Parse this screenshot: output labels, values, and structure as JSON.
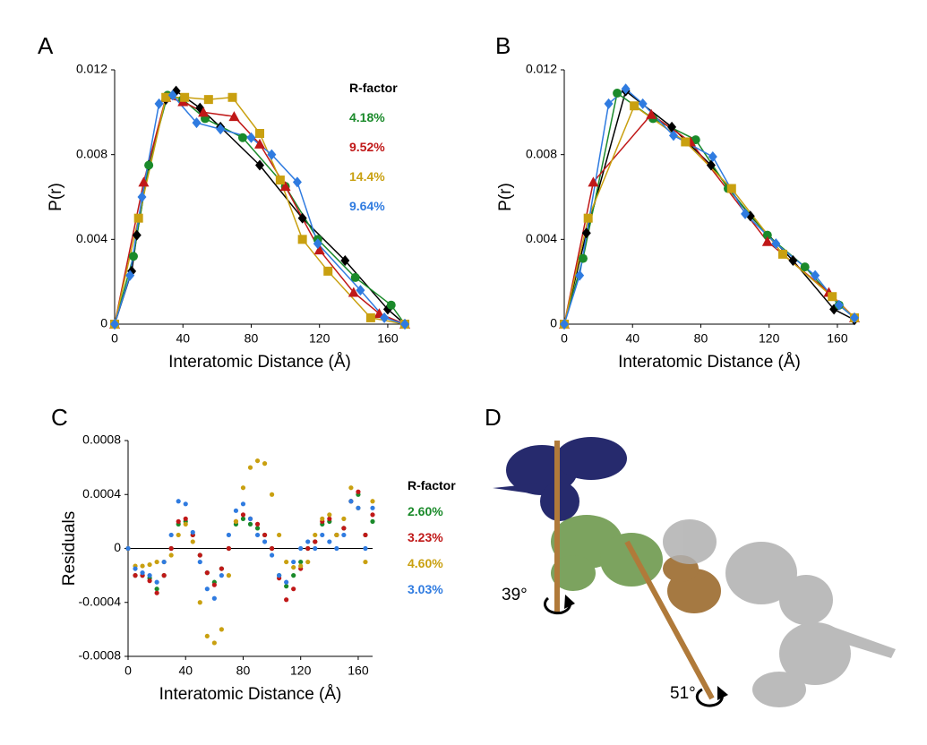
{
  "chart_data": [
    {
      "type": "line",
      "panel": "A",
      "xlabel": "Interatomic Distance (Å)",
      "ylabel": "P(r)",
      "xlim": [
        0,
        170
      ],
      "xticks": [
        0,
        40,
        80,
        120,
        160
      ],
      "ylim": [
        0,
        0.012
      ],
      "yticks": [
        0,
        0.004,
        0.008,
        0.012
      ],
      "legend_title": "R-factor",
      "series": [
        {
          "color": "#000000",
          "marker": "diamond",
          "x": [
            0,
            10,
            13,
            20,
            30,
            36,
            50,
            62,
            85,
            110,
            135,
            160,
            170
          ],
          "values": [
            0,
            0.0025,
            0.0042,
            0.0075,
            0.0106,
            0.011,
            0.0102,
            0.0093,
            0.0075,
            0.005,
            0.003,
            0.0007,
            0
          ]
        },
        {
          "name": "4.18%",
          "color": "#1a8a2a",
          "marker": "circle",
          "x": [
            0,
            11,
            20,
            31,
            40,
            53,
            75,
            100,
            119,
            141,
            162,
            170
          ],
          "values": [
            0,
            0.0032,
            0.0075,
            0.0108,
            0.0106,
            0.0097,
            0.0088,
            0.0065,
            0.004,
            0.0022,
            0.0009,
            0
          ]
        },
        {
          "name": "9.52%",
          "color": "#c01818",
          "marker": "triangle",
          "x": [
            0,
            17,
            30,
            40,
            52,
            70,
            85,
            100,
            120,
            140,
            155,
            170
          ],
          "values": [
            0,
            0.0067,
            0.0107,
            0.0105,
            0.01,
            0.0098,
            0.0085,
            0.0065,
            0.0035,
            0.0015,
            0.0005,
            0
          ]
        },
        {
          "name": "14.4%",
          "color": "#c9a010",
          "marker": "square",
          "x": [
            0,
            14,
            30,
            41,
            55,
            69,
            85,
            97,
            110,
            125,
            150,
            170
          ],
          "values": [
            0,
            0.005,
            0.0107,
            0.0107,
            0.0106,
            0.0107,
            0.009,
            0.0068,
            0.004,
            0.0025,
            0.0003,
            0
          ]
        },
        {
          "name": "9.64%",
          "color": "#2f7be0",
          "marker": "diamond",
          "x": [
            0,
            9,
            16,
            26,
            34,
            48,
            62,
            80,
            92,
            107,
            119,
            144,
            158,
            170
          ],
          "values": [
            0,
            0.0023,
            0.006,
            0.0104,
            0.0108,
            0.0095,
            0.0092,
            0.0088,
            0.008,
            0.0067,
            0.0038,
            0.0016,
            0.0003,
            0
          ]
        }
      ]
    },
    {
      "type": "line",
      "panel": "B",
      "xlabel": "Interatomic Distance (Å)",
      "ylabel": "P(r)",
      "xlim": [
        0,
        170
      ],
      "xticks": [
        0,
        40,
        80,
        120,
        160
      ],
      "ylim": [
        0,
        0.012
      ],
      "yticks": [
        0,
        0.004,
        0.008,
        0.012
      ],
      "series": [
        {
          "color": "#000000",
          "marker": "diamond",
          "x": [
            0,
            13,
            36,
            63,
            86,
            109,
            134,
            158,
            170
          ],
          "values": [
            0,
            0.0043,
            0.011,
            0.0093,
            0.0075,
            0.0051,
            0.003,
            0.0007,
            0.0002
          ]
        },
        {
          "color": "#1a8a2a",
          "marker": "circle",
          "x": [
            0,
            11,
            31,
            52,
            77,
            96,
            119,
            141,
            161,
            170
          ],
          "values": [
            0,
            0.0031,
            0.0109,
            0.0097,
            0.0087,
            0.0064,
            0.0042,
            0.0027,
            0.0009,
            0.0003
          ]
        },
        {
          "color": "#c01818",
          "marker": "triangle",
          "x": [
            0,
            17,
            51,
            74,
            119,
            155,
            170
          ],
          "values": [
            0,
            0.0067,
            0.0099,
            0.0086,
            0.0039,
            0.0015,
            0.0003
          ]
        },
        {
          "color": "#c9a010",
          "marker": "square",
          "x": [
            0,
            14,
            41,
            71,
            98,
            128,
            157,
            170
          ],
          "values": [
            0,
            0.005,
            0.0103,
            0.0086,
            0.0064,
            0.0033,
            0.0013,
            0.0003
          ]
        },
        {
          "color": "#2f7be0",
          "marker": "diamond",
          "x": [
            0,
            9,
            26,
            36,
            46,
            64,
            87,
            106,
            124,
            147,
            161,
            170
          ],
          "values": [
            0,
            0.0023,
            0.0104,
            0.0111,
            0.0104,
            0.0089,
            0.0079,
            0.0052,
            0.0038,
            0.0023,
            0.0009,
            0.0003
          ]
        }
      ]
    },
    {
      "type": "scatter",
      "panel": "C",
      "xlabel": "Interatomic Distance (Å)",
      "ylabel": "Residuals",
      "xlim": [
        0,
        170
      ],
      "xticks": [
        0,
        40,
        80,
        120,
        160
      ],
      "ylim": [
        -0.0008,
        0.0008
      ],
      "yticks": [
        -0.0008,
        -0.0004,
        0,
        0.0004,
        0.0008
      ],
      "zero_line": true,
      "legend_title": "R-factor",
      "x": [
        0,
        5,
        10,
        15,
        20,
        25,
        30,
        35,
        40,
        45,
        50,
        55,
        60,
        65,
        70,
        75,
        80,
        85,
        90,
        95,
        100,
        105,
        110,
        115,
        120,
        125,
        130,
        135,
        140,
        145,
        150,
        155,
        160,
        165,
        170
      ],
      "series": [
        {
          "name": "2.60%",
          "color": "#1a8a2a",
          "values": [
            0,
            -0.0002,
            -0.0002,
            -0.00022,
            -0.0003,
            -0.0002,
            0,
            0.00018,
            0.0002,
            0.0001,
            -5e-05,
            -0.00018,
            -0.00025,
            -0.00015,
            0,
            0.00018,
            0.00022,
            0.00018,
            0.00015,
            0.0001,
            0,
            -0.0002,
            -0.00028,
            -0.0002,
            -0.0001,
            0,
            5e-05,
            0.00018,
            0.0002,
            0.0001,
            0.00015,
            0.00035,
            0.0004,
            0.0001,
            0.0002
          ]
        },
        {
          "name": "3.23%",
          "color": "#c01818",
          "values": [
            0,
            -0.0002,
            -0.0002,
            -0.00024,
            -0.00033,
            -0.0002,
            0,
            0.0002,
            0.00022,
            0.0001,
            -5e-05,
            -0.00018,
            -0.00027,
            -0.00015,
            0,
            0.0002,
            0.00025,
            0.00022,
            0.00018,
            0.0001,
            0,
            -0.00022,
            -0.00038,
            -0.0003,
            -0.00015,
            0,
            5e-05,
            0.0002,
            0.00022,
            0.0001,
            0.00015,
            0.00035,
            0.00042,
            0.0001,
            0.00025
          ]
        },
        {
          "name": "4.60%",
          "color": "#c9a010",
          "values": [
            0,
            -0.00013,
            -0.00013,
            -0.00012,
            -0.0001,
            -0.0001,
            -5e-05,
            0.0001,
            0.00018,
            5e-05,
            -0.0004,
            -0.00065,
            -0.0007,
            -0.0006,
            -0.0002,
            0.0002,
            0.00045,
            0.0006,
            0.00065,
            0.00063,
            0.0004,
            0.0001,
            -0.0001,
            -0.00014,
            -0.00013,
            -0.0001,
            0.0001,
            0.00022,
            0.00025,
            0.0001,
            0.00022,
            0.00045,
            0.0003,
            -0.0001,
            0.00035
          ]
        },
        {
          "name": "3.03%",
          "color": "#2f7be0",
          "values": [
            0,
            -0.00015,
            -0.00018,
            -0.0002,
            -0.00025,
            -0.0001,
            0.0001,
            0.00035,
            0.00033,
            0.00012,
            -0.0001,
            -0.0003,
            -0.00037,
            -0.0002,
            0.0001,
            0.00028,
            0.00033,
            0.00022,
            0.0001,
            5e-05,
            -5e-05,
            -0.0002,
            -0.00025,
            -0.0001,
            0,
            5e-05,
            0,
            0.0001,
            5e-05,
            0,
            0.0001,
            0.00035,
            0.0003,
            0,
            0.0003
          ]
        }
      ]
    }
  ],
  "figure_d": {
    "panel": "D",
    "angle_1": "39°",
    "angle_2": "51°"
  }
}
